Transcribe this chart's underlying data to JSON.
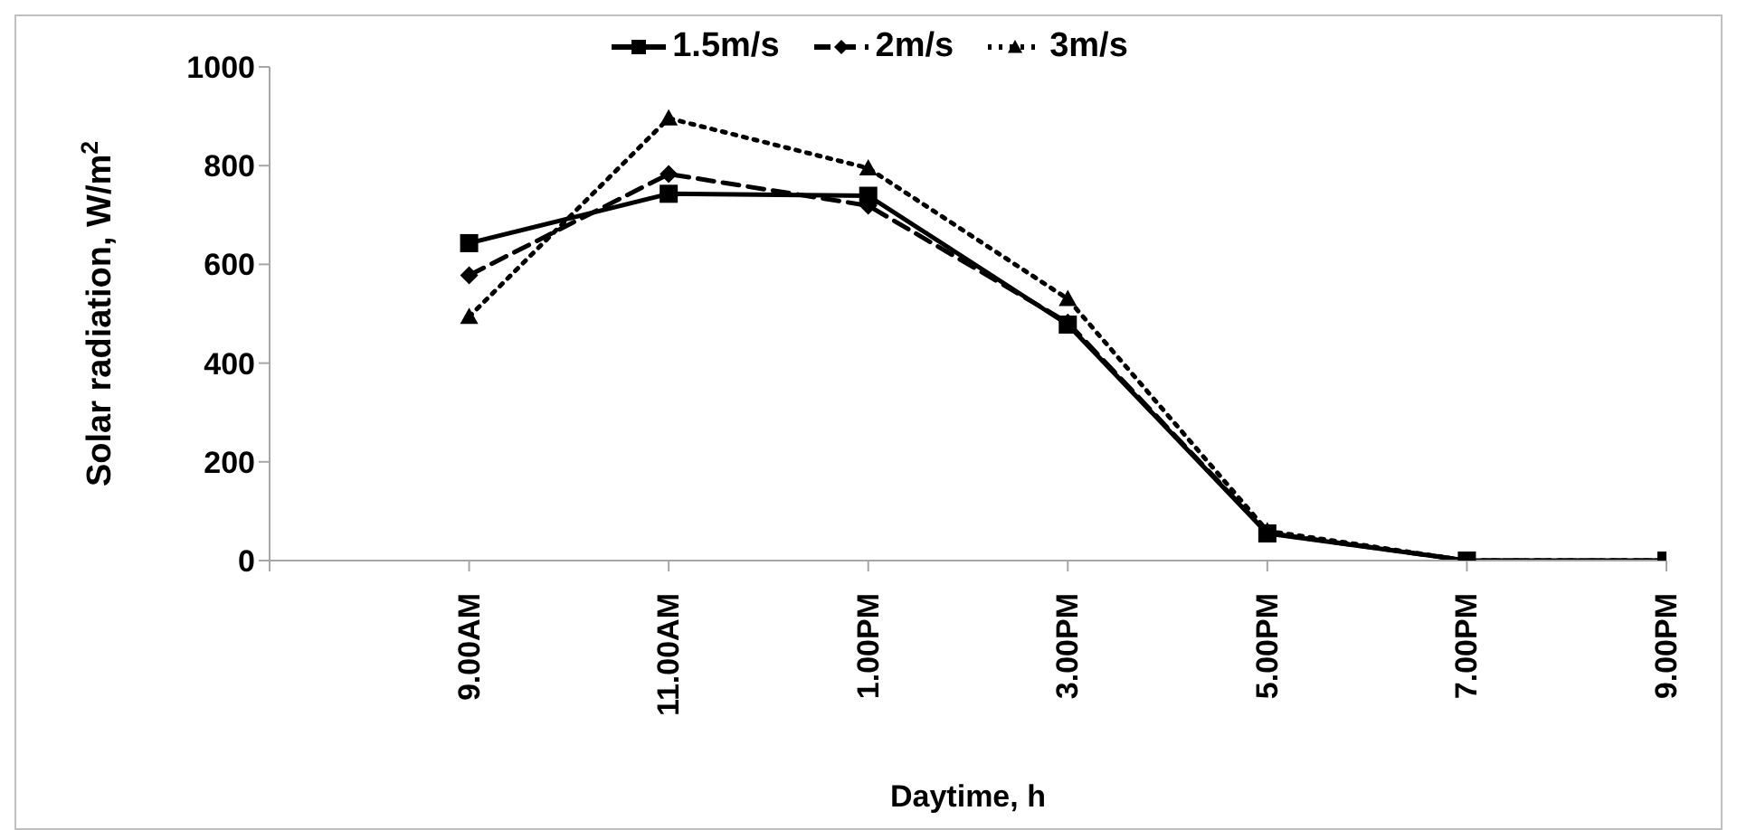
{
  "chart_data": {
    "type": "line",
    "xlabel": "Daytime, h",
    "ylabel": "Solar radiation, W/m$^{2}$",
    "categories": [
      null,
      "9.00AM",
      "11.00AM",
      "1.00PM",
      "3.00PM",
      "5.00PM",
      "7.00PM",
      "9.00PM"
    ],
    "series": [
      {
        "name": "1.5m/s",
        "color": "#000000",
        "marker": "square",
        "line_style": "solid",
        "values": [
          null,
          643,
          743,
          739,
          478,
          55,
          0,
          0
        ]
      },
      {
        "name": "2m/s",
        "color": "#000000",
        "marker": "diamond",
        "line_style": "dashed",
        "values": [
          null,
          578,
          783,
          719,
          482,
          56,
          0,
          0
        ]
      },
      {
        "name": "3m/s",
        "color": "#000000",
        "marker": "triangle",
        "line_style": "dotted",
        "values": [
          null,
          494,
          896,
          795,
          530,
          60,
          0,
          0
        ]
      }
    ],
    "ylim": [
      0,
      1000
    ],
    "yticks": [
      0,
      200,
      400,
      600,
      800,
      1000
    ],
    "legend": "top"
  }
}
